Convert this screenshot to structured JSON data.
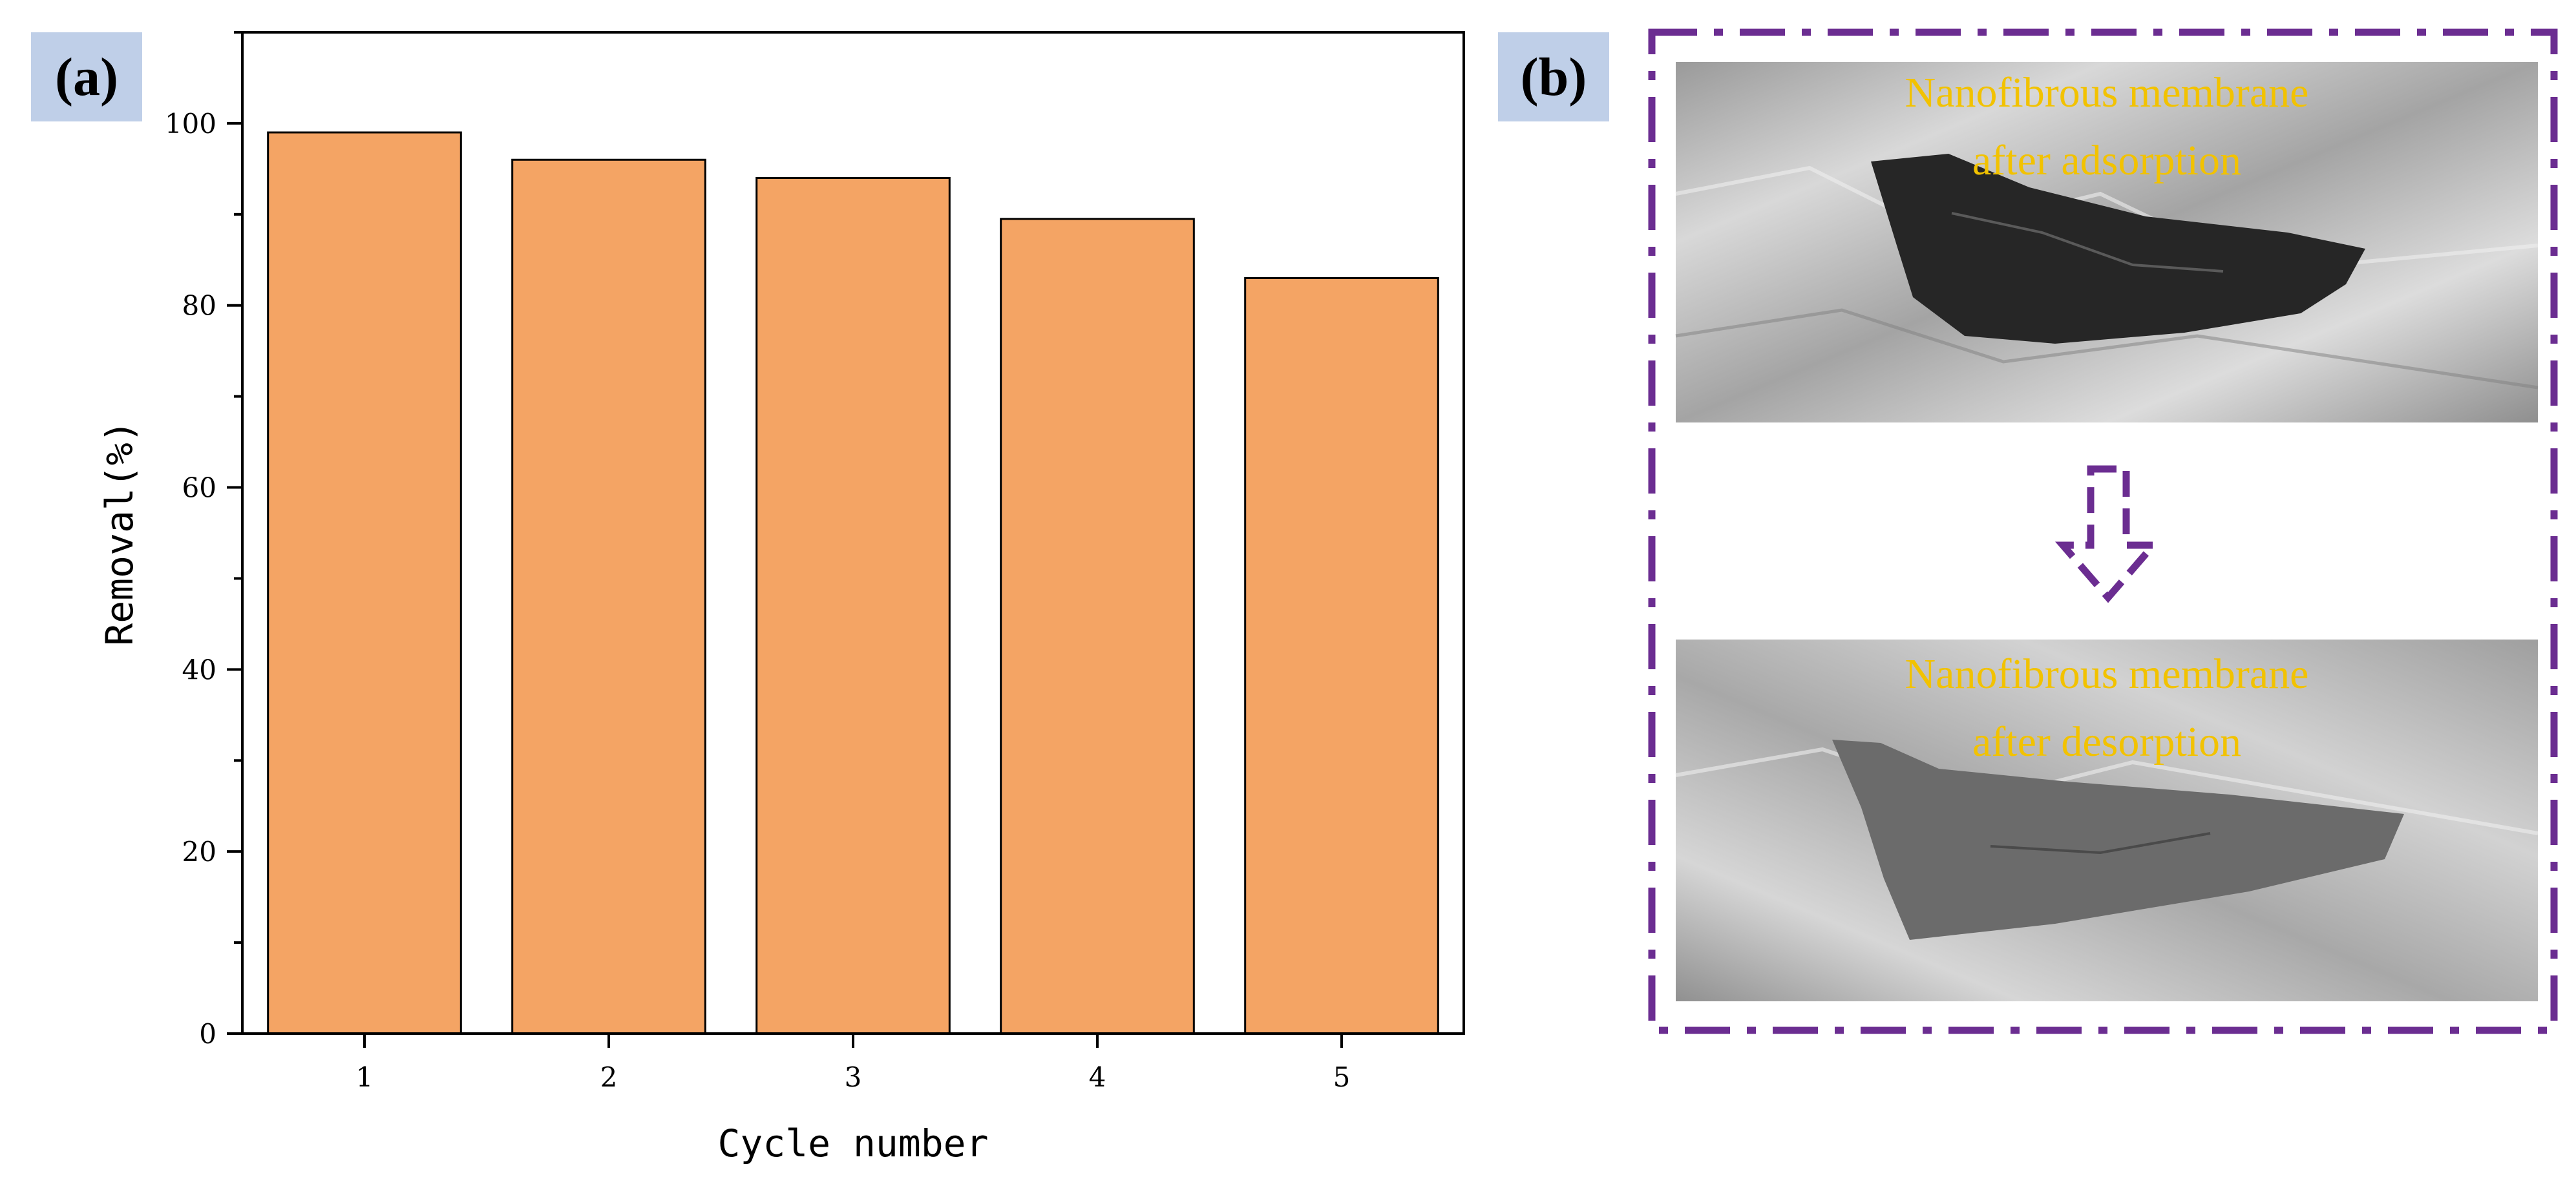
{
  "panels": {
    "a_label": "(a)",
    "b_label": "(b)"
  },
  "chart_data": {
    "type": "bar",
    "categories": [
      "1",
      "2",
      "3",
      "4",
      "5"
    ],
    "values": [
      99,
      96,
      94,
      89.5,
      83
    ],
    "xlabel": "Cycle number",
    "ylabel": "Removal(%)",
    "ylim": [
      0,
      110
    ],
    "yticks": [
      0,
      20,
      40,
      60,
      80,
      100
    ],
    "bar_color": "#f4a464",
    "grid": false,
    "legend": "none"
  },
  "photos": {
    "top_caption": [
      "Nanofibrous membrane",
      "after adsorption"
    ],
    "bottom_caption": [
      "Nanofibrous membrane",
      "after desorption"
    ],
    "frame_color": "#6b2d91",
    "caption_color": "#f2c200"
  }
}
